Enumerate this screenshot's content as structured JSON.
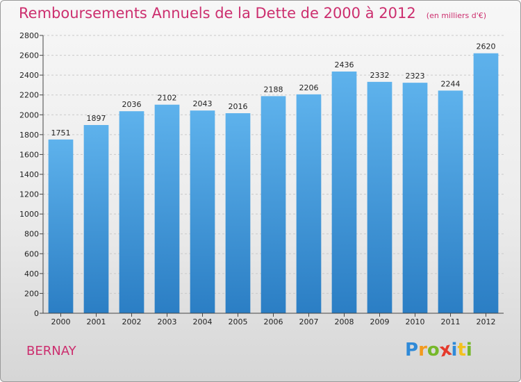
{
  "header": {
    "title": "Remboursements Annuels de la Dette de 2000 à 2012",
    "unit": "(en milliers d'€)"
  },
  "footer": {
    "place": "BERNAY",
    "logo_letters": [
      "P",
      "r",
      "o",
      "x",
      "i",
      "t",
      "i"
    ],
    "logo_colors": [
      "#2f8ad8",
      "#f39a1e",
      "#76b82a",
      "#e53a2c",
      "#2f8ad8",
      "#f3c11e",
      "#76b82a"
    ]
  },
  "colors": {
    "bar_top": "#5eb2ec",
    "bar_bottom": "#2b7ec4",
    "grid": "#c9c9c9",
    "title": "#cc2e6e"
  },
  "chart_data": {
    "type": "bar",
    "categories": [
      "2000",
      "2001",
      "2002",
      "2003",
      "2004",
      "2005",
      "2006",
      "2007",
      "2008",
      "2009",
      "2010",
      "2011",
      "2012"
    ],
    "values": [
      1751,
      1897,
      2036,
      2102,
      2043,
      2016,
      2188,
      2206,
      2436,
      2332,
      2323,
      2244,
      2620
    ],
    "title": "Remboursements Annuels de la Dette de 2000 à 2012",
    "xlabel": "",
    "ylabel": "",
    "ylim": [
      0,
      2800
    ],
    "yticks": [
      0,
      200,
      400,
      600,
      800,
      1000,
      1200,
      1400,
      1600,
      1800,
      2000,
      2200,
      2400,
      2600,
      2800
    ],
    "grid": true,
    "legend": "none"
  }
}
